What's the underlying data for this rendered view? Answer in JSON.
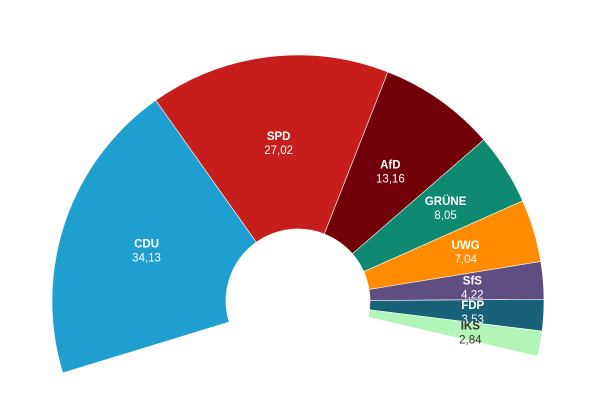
{
  "chart_data": {
    "type": "pie",
    "subtype": "half-donut-parliament",
    "categories": [
      "CDU",
      "SPD",
      "AfD",
      "GRÜNE",
      "UWG",
      "SfS",
      "FDP",
      "IKS"
    ],
    "values": [
      34.13,
      27.02,
      13.16,
      8.05,
      7.04,
      4.22,
      3.53,
      2.84
    ],
    "value_labels": [
      "34,13",
      "27,02",
      "13,16",
      "8,05",
      "7,04",
      "4,22",
      "3,53",
      "2,84"
    ],
    "colors": [
      "#1f9fd0",
      "#c81d1d",
      "#720009",
      "#0e8a70",
      "#ff8c00",
      "#5e4e82",
      "#176179",
      "#b3f5b7"
    ],
    "label_dark": [
      false,
      false,
      false,
      false,
      false,
      false,
      false,
      true
    ],
    "legend": "none"
  }
}
